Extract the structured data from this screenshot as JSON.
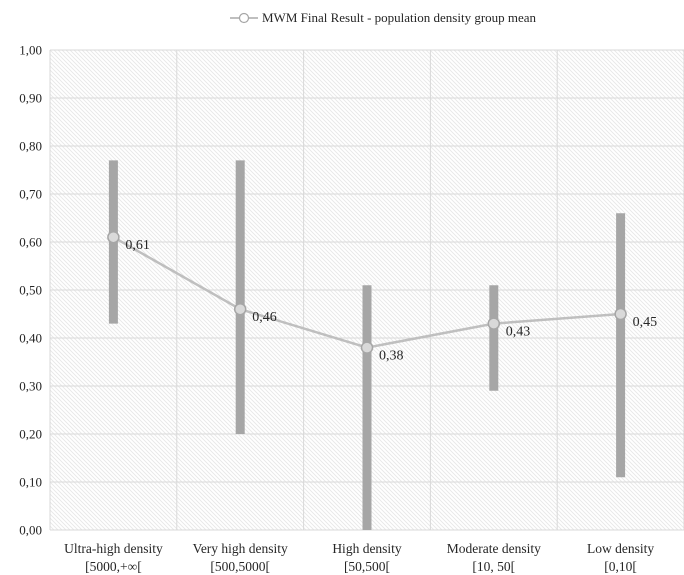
{
  "chart_data": {
    "type": "line",
    "title": "",
    "xlabel": "",
    "ylabel": "",
    "ylim": [
      0,
      1
    ],
    "y_ticks": [
      "0,00",
      "0,10",
      "0,20",
      "0,30",
      "0,40",
      "0,50",
      "0,60",
      "0,70",
      "0,80",
      "0,90",
      "1,00"
    ],
    "grid": true,
    "legend_position": "top",
    "categories": [
      {
        "line1": "Ultra-high density",
        "line2": "[5000,+∞["
      },
      {
        "line1": "Very high density",
        "line2": "[500,5000["
      },
      {
        "line1": "High density",
        "line2": "[50,500["
      },
      {
        "line1": "Moderate density",
        "line2": "[10, 50["
      },
      {
        "line1": "Low density",
        "line2": "[0,10["
      }
    ],
    "series": [
      {
        "name": "MWM Final Result - population density group mean",
        "values": [
          0.61,
          0.46,
          0.38,
          0.43,
          0.45
        ],
        "labels": [
          "0,61",
          "0,46",
          "0,38",
          "0,43",
          "0,45"
        ]
      }
    ],
    "error_bars": [
      {
        "low": 0.43,
        "high": 0.77
      },
      {
        "low": 0.2,
        "high": 0.77
      },
      {
        "low": 0.0,
        "high": 0.51
      },
      {
        "low": 0.29,
        "high": 0.51
      },
      {
        "low": 0.11,
        "high": 0.66
      }
    ],
    "colors": {
      "line": "#bfbfbf",
      "marker_fill": "#d9d9d9",
      "marker_stroke": "#a6a6a6",
      "error_bar": "#a6a6a6",
      "grid": "#d9d9d9",
      "hatch": "#e6e6e6"
    }
  }
}
